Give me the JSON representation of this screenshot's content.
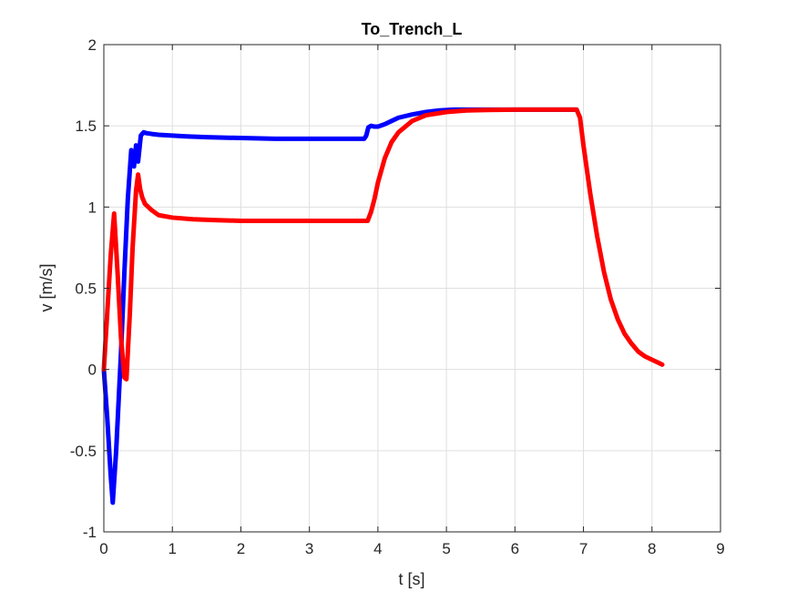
{
  "chart_data": {
    "type": "line",
    "title": "To_Trench_L",
    "xlabel": "t [s]",
    "ylabel": "v [m/s]",
    "xlim": [
      0,
      9
    ],
    "ylim": [
      -1,
      2
    ],
    "xticks": [
      0,
      1,
      2,
      3,
      4,
      5,
      6,
      7,
      8,
      9
    ],
    "xtick_labels": [
      "0",
      "1",
      "2",
      "3",
      "4",
      "5",
      "6",
      "7",
      "8",
      "9"
    ],
    "yticks": [
      -1,
      -0.5,
      0,
      0.5,
      1,
      1.5,
      2
    ],
    "ytick_labels": [
      "-1",
      "-0.5",
      "0",
      "0.5",
      "1",
      "1.5",
      "2"
    ],
    "grid": true,
    "legend": "none",
    "series": [
      {
        "color": "#0000ff",
        "x": [
          0,
          0.05,
          0.1,
          0.13,
          0.18,
          0.25,
          0.3,
          0.35,
          0.4,
          0.44,
          0.47,
          0.5,
          0.54,
          0.58,
          0.62,
          0.7,
          0.8,
          1.0,
          1.2,
          1.5,
          2.0,
          2.5,
          3.0,
          3.5,
          3.8,
          3.83,
          3.86,
          3.9,
          3.95,
          4.0,
          4.1,
          4.2,
          4.3,
          4.5,
          4.7,
          4.9,
          5.1,
          5.5,
          6.0,
          6.5,
          6.9
        ],
        "y": [
          0,
          -0.3,
          -0.65,
          -0.82,
          -0.5,
          0.1,
          0.6,
          1.05,
          1.35,
          1.25,
          1.38,
          1.28,
          1.44,
          1.46,
          1.455,
          1.45,
          1.445,
          1.44,
          1.435,
          1.43,
          1.425,
          1.42,
          1.42,
          1.42,
          1.42,
          1.44,
          1.49,
          1.5,
          1.495,
          1.495,
          1.51,
          1.53,
          1.55,
          1.57,
          1.585,
          1.595,
          1.6,
          1.6,
          1.6,
          1.6,
          1.6
        ]
      },
      {
        "color": "#ff0000",
        "x": [
          0,
          0.05,
          0.1,
          0.15,
          0.2,
          0.25,
          0.3,
          0.33,
          0.38,
          0.42,
          0.47,
          0.5,
          0.53,
          0.56,
          0.6,
          0.7,
          0.8,
          1.0,
          1.3,
          1.6,
          2.0,
          2.5,
          3.0,
          3.5,
          3.85,
          3.9,
          3.95,
          4.0,
          4.1,
          4.2,
          4.3,
          4.5,
          4.7,
          5.0,
          5.3,
          5.6,
          6.0,
          6.5,
          6.9,
          6.95,
          7.0,
          7.1,
          7.2,
          7.3,
          7.4,
          7.5,
          7.6,
          7.7,
          7.8,
          7.9,
          8.0,
          8.1,
          8.15
        ],
        "y": [
          0,
          0.35,
          0.7,
          0.96,
          0.6,
          0.2,
          -0.05,
          -0.06,
          0.35,
          0.75,
          1.1,
          1.2,
          1.11,
          1.06,
          1.02,
          0.98,
          0.95,
          0.935,
          0.925,
          0.92,
          0.915,
          0.915,
          0.915,
          0.915,
          0.915,
          0.97,
          1.05,
          1.15,
          1.3,
          1.4,
          1.46,
          1.53,
          1.565,
          1.585,
          1.595,
          1.598,
          1.6,
          1.6,
          1.6,
          1.55,
          1.38,
          1.08,
          0.82,
          0.6,
          0.43,
          0.31,
          0.22,
          0.16,
          0.11,
          0.08,
          0.06,
          0.04,
          0.03
        ]
      }
    ]
  }
}
